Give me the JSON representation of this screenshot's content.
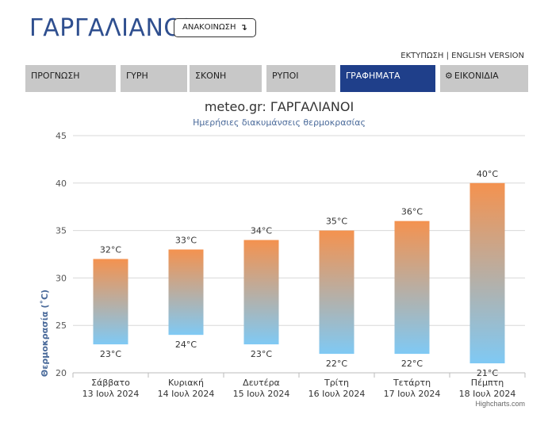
{
  "header": {
    "city": "ΓΑΡΓΑΛΙΑΝΟΙ",
    "announce_label": "ΑΝΑΚΟΙΝΩΣΗ",
    "print_link": "ΕΚΤΥΠΩΣΗ",
    "separator": " | ",
    "english_link": "ENGLISH VERSION"
  },
  "tabs": [
    {
      "label": "ΠΡΟΓΝΩΣΗ",
      "active": false
    },
    {
      "label": "ΓΥΡΗ",
      "active": false
    },
    {
      "label": "ΣΚΟΝΗ",
      "active": false
    },
    {
      "label": "ΡΥΠΟΙ",
      "active": false
    },
    {
      "label": "ΓΡΑΦΗΜΑΤΑ",
      "active": true
    },
    {
      "label": "ΕΙΚΟΝΙΔΙΑ",
      "active": false,
      "icon": "gear-icon"
    }
  ],
  "colors": {
    "accent": "#1f3f8a",
    "title": "#2f4f8f",
    "bar_top": "#f4924f",
    "bar_bottom": "#7fc9f4",
    "tab_bg": "#c8c8c8"
  },
  "chart_data": {
    "type": "columnrange",
    "title": "meteo.gr: ΓΑΡΓΑΛΙΑΝΟΙ",
    "subtitle": "Ημερήσιες διακυμάνσεις θερμοκρασίας",
    "ylabel": "Θερμοκρασία (˚C)",
    "ylim": [
      20,
      45
    ],
    "yticks": [
      20,
      25,
      30,
      35,
      40,
      45
    ],
    "grid": true,
    "categories": [
      {
        "day": "Σάββατο",
        "date": "13 Ιουλ 2024"
      },
      {
        "day": "Κυριακή",
        "date": "14 Ιουλ 2024"
      },
      {
        "day": "Δευτέρα",
        "date": "15 Ιουλ 2024"
      },
      {
        "day": "Τρίτη",
        "date": "16 Ιουλ 2024"
      },
      {
        "day": "Τετάρτη",
        "date": "17 Ιουλ 2024"
      },
      {
        "day": "Πέμπτη",
        "date": "18 Ιουλ 2024"
      }
    ],
    "low": [
      23,
      24,
      23,
      22,
      22,
      21
    ],
    "high": [
      32,
      33,
      34,
      35,
      36,
      40
    ],
    "unit": "°C"
  },
  "credits": "Highcharts.com"
}
